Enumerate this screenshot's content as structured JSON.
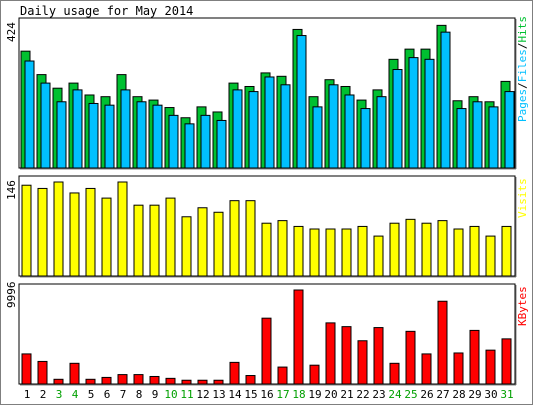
{
  "title": "Daily usage for May 2014",
  "colors": {
    "hits": "#00c030",
    "files": "#00c0ff",
    "pages": "#00c0ff",
    "visits": "#ffff00",
    "kbytes": "#ff0000",
    "weekend_label": "#00a000",
    "weekday_label": "#000000"
  },
  "chart_data": [
    {
      "type": "bar",
      "panel": "hits-files-pages",
      "ylabel_parts": [
        {
          "text": "Pages",
          "color": "#00c0ff"
        },
        {
          "text": "/",
          "color": "#000000"
        },
        {
          "text": "Files",
          "color": "#00c0ff"
        },
        {
          "text": "/",
          "color": "#000000"
        },
        {
          "text": "Hits",
          "color": "#00c030"
        }
      ],
      "ymax_label": "424",
      "ylim": [
        0,
        424
      ],
      "categories": [
        "1",
        "2",
        "3",
        "4",
        "5",
        "6",
        "7",
        "8",
        "9",
        "10",
        "11",
        "12",
        "13",
        "14",
        "15",
        "16",
        "17",
        "18",
        "19",
        "20",
        "21",
        "22",
        "23",
        "24",
        "25",
        "26",
        "27",
        "28",
        "29",
        "30",
        "31"
      ],
      "series": [
        {
          "name": "Hits",
          "color": "#00c030",
          "values": [
            344,
            275,
            235,
            250,
            215,
            210,
            275,
            210,
            200,
            178,
            148,
            180,
            165,
            250,
            240,
            280,
            270,
            408,
            210,
            260,
            240,
            200,
            230,
            320,
            350,
            350,
            420,
            198,
            210,
            195,
            255
          ]
        },
        {
          "name": "Files",
          "color": "#00c0ff",
          "values": [
            315,
            250,
            195,
            230,
            190,
            185,
            230,
            195,
            185,
            155,
            130,
            155,
            140,
            230,
            225,
            268,
            245,
            390,
            180,
            245,
            215,
            175,
            210,
            290,
            325,
            320,
            400,
            175,
            195,
            180,
            225
          ]
        }
      ]
    },
    {
      "type": "bar",
      "panel": "visits",
      "ylabel_parts": [
        {
          "text": "Visits",
          "color": "#ffff00"
        }
      ],
      "ymax_label": "146",
      "ylim": [
        0,
        146
      ],
      "categories": [
        "1",
        "2",
        "3",
        "4",
        "5",
        "6",
        "7",
        "8",
        "9",
        "10",
        "11",
        "12",
        "13",
        "14",
        "15",
        "16",
        "17",
        "18",
        "19",
        "20",
        "21",
        "22",
        "23",
        "24",
        "25",
        "26",
        "27",
        "28",
        "29",
        "30",
        "31"
      ],
      "series": [
        {
          "name": "Visits",
          "color": "#ffff00",
          "values": [
            141,
            136,
            146,
            129,
            136,
            121,
            146,
            110,
            110,
            121,
            92,
            106,
            99,
            117,
            117,
            82,
            86,
            77,
            73,
            73,
            73,
            77,
            62,
            82,
            88,
            82,
            86,
            73,
            77,
            62,
            77
          ]
        }
      ]
    },
    {
      "type": "bar",
      "panel": "kbytes",
      "ylabel_parts": [
        {
          "text": "KBytes",
          "color": "#ff0000"
        }
      ],
      "ymax_label": "9996",
      "ylim": [
        0,
        9996
      ],
      "categories": [
        "1",
        "2",
        "3",
        "4",
        "5",
        "6",
        "7",
        "8",
        "9",
        "10",
        "11",
        "12",
        "13",
        "14",
        "15",
        "16",
        "17",
        "18",
        "19",
        "20",
        "21",
        "22",
        "23",
        "24",
        "25",
        "26",
        "27",
        "28",
        "29",
        "30",
        "31"
      ],
      "weekend_days": [
        "3",
        "4",
        "10",
        "11",
        "17",
        "18",
        "24",
        "25",
        "31"
      ],
      "series": [
        {
          "name": "KBytes",
          "color": "#ff0000",
          "values": [
            3200,
            2400,
            500,
            2200,
            500,
            700,
            1000,
            1000,
            800,
            600,
            400,
            400,
            400,
            2300,
            900,
            7000,
            1800,
            9996,
            2000,
            6500,
            6100,
            4600,
            6000,
            2200,
            5600,
            3200,
            8800,
            3300,
            5700,
            3600,
            4800
          ]
        }
      ]
    }
  ]
}
